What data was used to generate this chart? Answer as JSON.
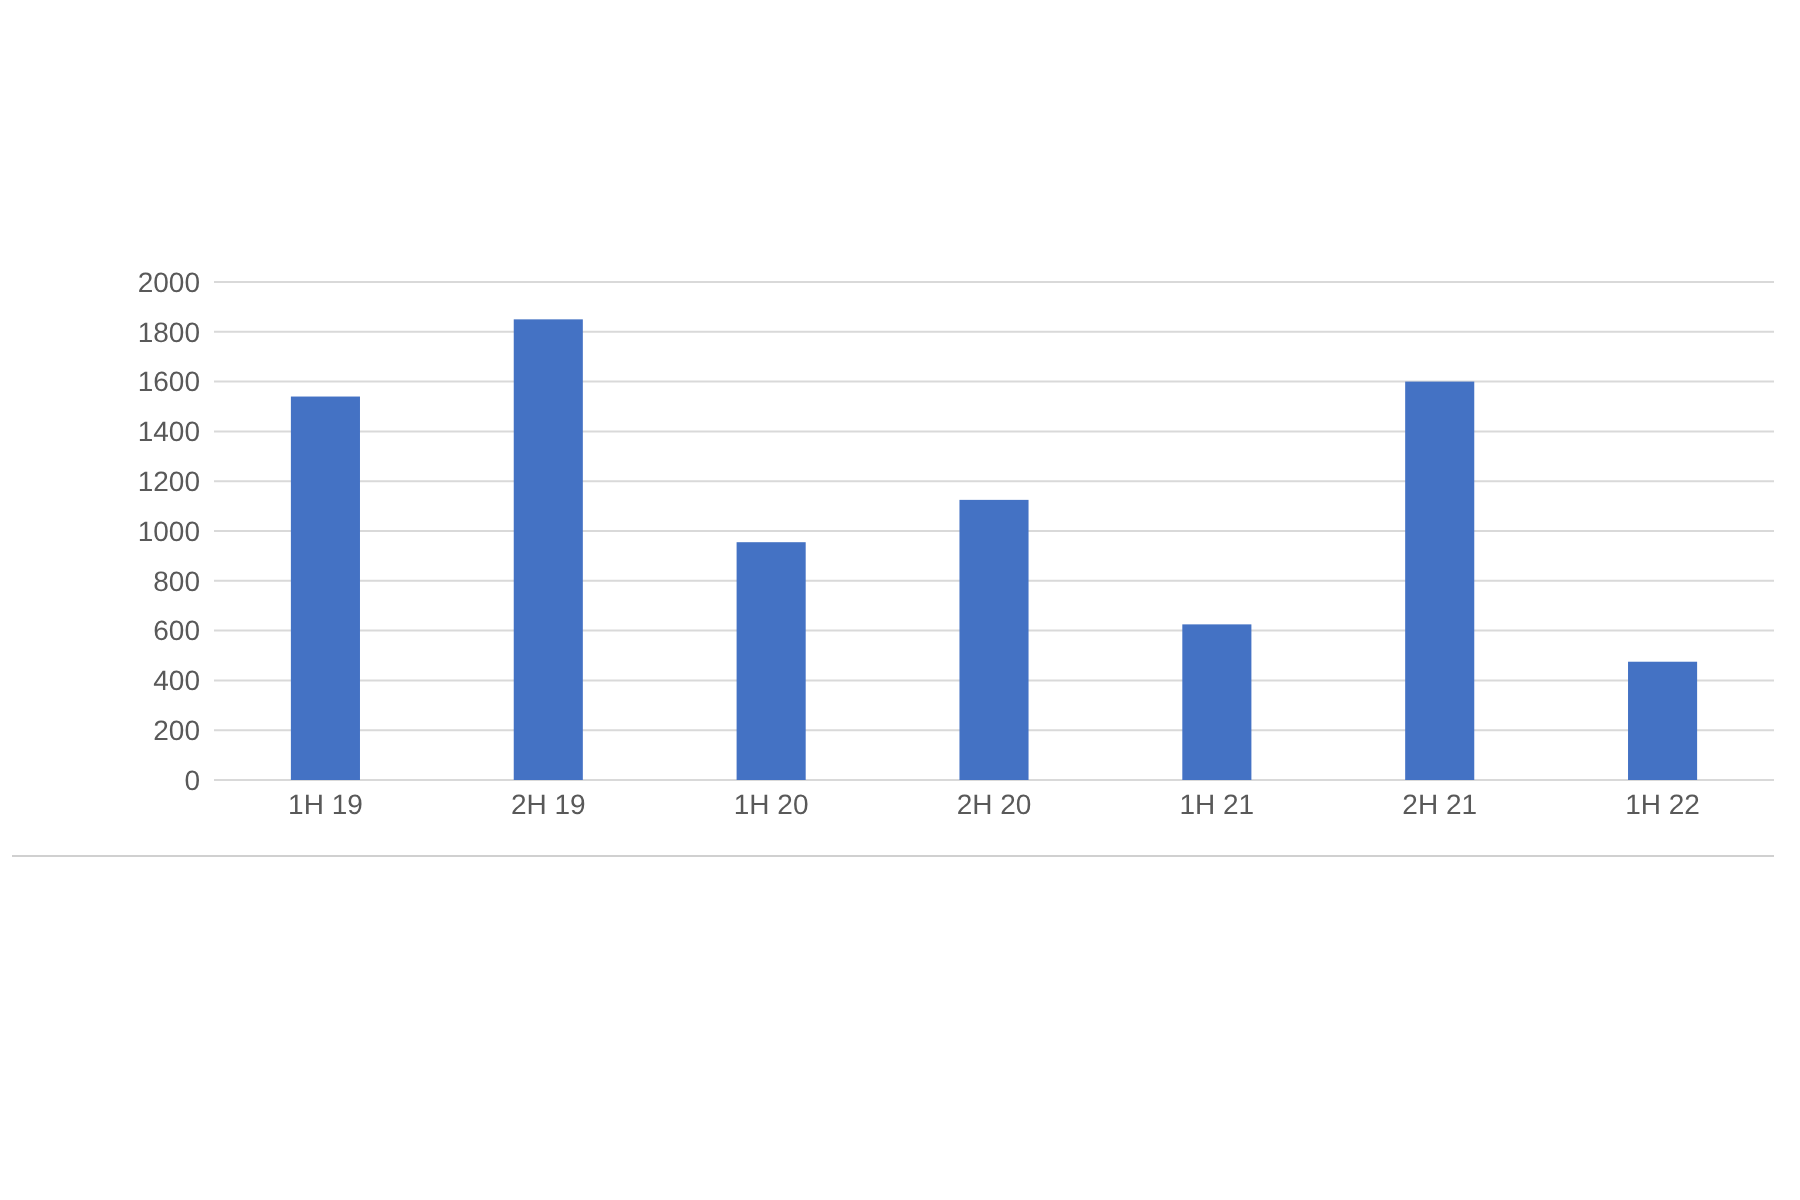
{
  "chart_data": {
    "type": "bar",
    "categories": [
      "1H 19",
      "2H 19",
      "1H 20",
      "2H 20",
      "1H 21",
      "2H 21",
      "1H 22"
    ],
    "values": [
      1540,
      1850,
      955,
      1125,
      625,
      1600,
      475
    ],
    "color": "#4472c4",
    "ylim": [
      0,
      2000
    ],
    "yticks": [
      0,
      200,
      400,
      600,
      800,
      1000,
      1200,
      1400,
      1600,
      1800,
      2000
    ],
    "grid": "y"
  }
}
